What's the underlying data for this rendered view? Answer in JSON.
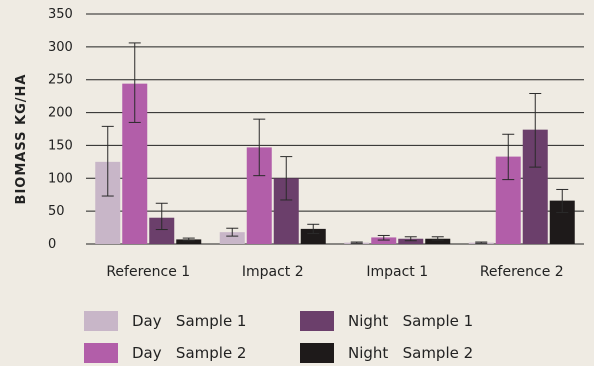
{
  "chart_data": {
    "type": "bar",
    "ylabel": "BIOMASS KG/HA",
    "xlabel": "",
    "ylim": [
      0,
      350
    ],
    "yticks": [
      0,
      50,
      100,
      150,
      200,
      250,
      300,
      350
    ],
    "categories": [
      "Reference 1",
      "Impact 2",
      "Impact 1",
      "Reference 2"
    ],
    "grid": "horizontal",
    "legend_position": "bottom",
    "series": [
      {
        "name": "Day   Sample 1",
        "color": "#c8b6c8",
        "values": [
          125,
          18,
          2,
          2
        ],
        "error_low": [
          73,
          12,
          1,
          1
        ],
        "error_high": [
          179,
          24,
          3,
          3
        ]
      },
      {
        "name": "Day   Sample 2",
        "color": "#b25ea9",
        "values": [
          244,
          147,
          10,
          133
        ],
        "error_low": [
          185,
          104,
          6,
          98
        ],
        "error_high": [
          306,
          190,
          13,
          167
        ]
      },
      {
        "name": "Night   Sample 1",
        "color": "#6b3f6b",
        "values": [
          40,
          100,
          8,
          174
        ],
        "error_low": [
          22,
          67,
          5,
          117
        ],
        "error_high": [
          62,
          133,
          11,
          229
        ]
      },
      {
        "name": "Night   Sample 2",
        "color": "#1e1a1a",
        "values": [
          7,
          23,
          8,
          66
        ],
        "error_low": [
          5,
          16,
          6,
          48
        ],
        "error_high": [
          9,
          30,
          11,
          83
        ]
      }
    ]
  },
  "legend": [
    {
      "label": "Day   Sample 1",
      "color": "#c8b6c8"
    },
    {
      "label": "Night   Sample 1",
      "color": "#6b3f6b"
    },
    {
      "label": "Day   Sample 2",
      "color": "#b25ea9"
    },
    {
      "label": "Night   Sample 2",
      "color": "#1e1a1a"
    }
  ]
}
